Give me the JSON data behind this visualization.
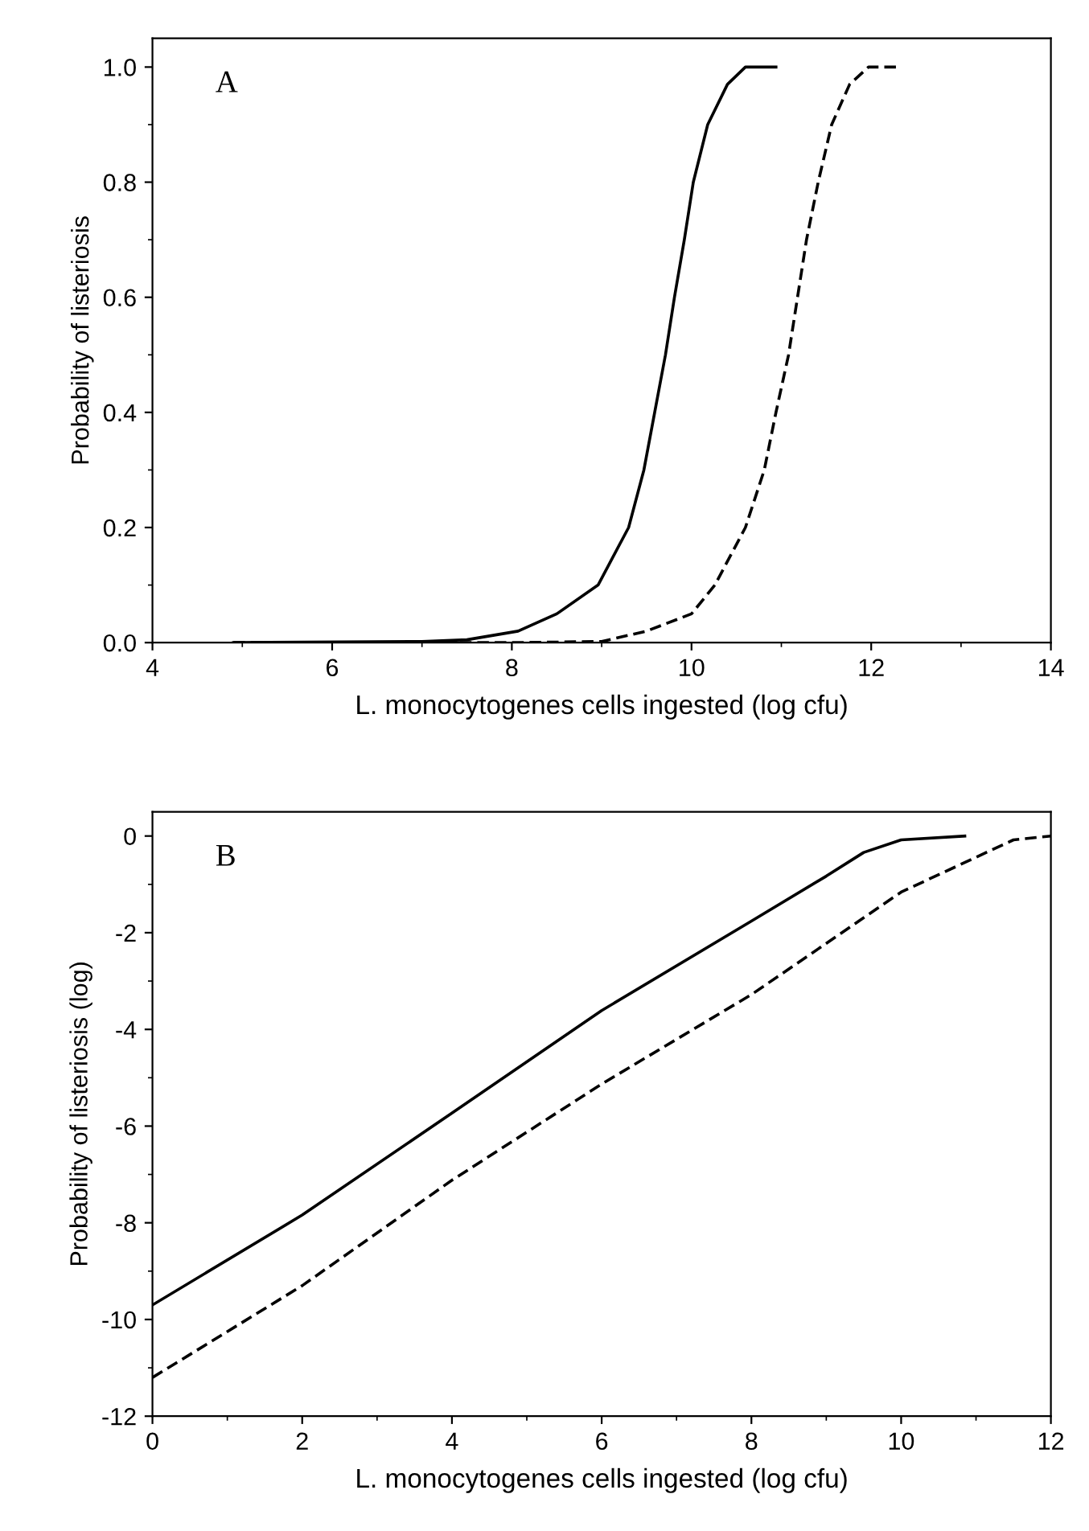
{
  "chart_data": [
    {
      "type": "line",
      "xlabel": "L. monocytogenes cells ingested (log cfu)",
      "ylabel": "Probability of listeriosis",
      "annotations": [
        "A"
      ],
      "xlim": [
        4,
        14
      ],
      "ylim": [
        0,
        1.05
      ],
      "xticks": [
        4,
        6,
        8,
        10,
        12,
        14
      ],
      "yticks": [
        {
          "value": 0,
          "label": "0.0"
        },
        {
          "value": 0.2,
          "label": "0.2"
        },
        {
          "value": 0.4,
          "label": "0.4"
        },
        {
          "value": 0.6,
          "label": "0.6"
        },
        {
          "value": 0.8,
          "label": "0.8"
        },
        {
          "value": 1,
          "label": "1.0"
        }
      ],
      "grid": false,
      "legend": false,
      "series": [
        {
          "color": "#000000",
          "line_style": "solid",
          "x": [
            4.9,
            7.0,
            7.5,
            8.07,
            8.5,
            8.96,
            9.3,
            9.47,
            9.59,
            9.71,
            9.81,
            9.92,
            10.02,
            10.18,
            10.4,
            10.6,
            10.94
          ],
          "values": [
            0,
            0.002,
            0.005,
            0.02,
            0.05,
            0.1,
            0.2,
            0.3,
            0.4,
            0.5,
            0.6,
            0.7,
            0.8,
            0.9,
            0.97,
            1.0,
            1.0
          ]
        },
        {
          "color": "#000000",
          "line_style": "dashed",
          "x": [
            4.9,
            8.0,
            9.0,
            9.5,
            10.0,
            10.26,
            10.6,
            10.81,
            10.94,
            11.08,
            11.18,
            11.28,
            11.41,
            11.56,
            11.76,
            11.97,
            12.28
          ],
          "values": [
            0,
            0,
            0.002,
            0.02,
            0.05,
            0.1,
            0.2,
            0.3,
            0.4,
            0.5,
            0.6,
            0.7,
            0.8,
            0.9,
            0.97,
            1.0,
            1.0
          ]
        }
      ]
    },
    {
      "type": "line",
      "xlabel": "L. monocytogenes cells ingested (log cfu)",
      "ylabel": "Probability of listeriosis (log)",
      "annotations": [
        "B"
      ],
      "xlim": [
        0,
        12
      ],
      "ylim": [
        -12,
        0.5
      ],
      "xticks": [
        0,
        2,
        4,
        6,
        8,
        10,
        12
      ],
      "yticks": [
        -12,
        -10,
        -8,
        -6,
        -4,
        -2,
        0
      ],
      "grid": false,
      "legend": false,
      "series": [
        {
          "color": "#000000",
          "line_style": "solid",
          "x": [
            0,
            2,
            4,
            6,
            8,
            9,
            9.5,
            10,
            10.85
          ],
          "values": [
            -9.7,
            -7.84,
            -5.73,
            -3.61,
            -1.76,
            -0.83,
            -0.34,
            -0.08,
            0
          ]
        },
        {
          "color": "#000000",
          "line_style": "dashed",
          "x": [
            0,
            2,
            4,
            6,
            8,
            10,
            11,
            11.5,
            12
          ],
          "values": [
            -11.2,
            -9.3,
            -7.12,
            -5.13,
            -3.28,
            -1.16,
            -0.44,
            -0.08,
            0
          ]
        }
      ]
    }
  ]
}
